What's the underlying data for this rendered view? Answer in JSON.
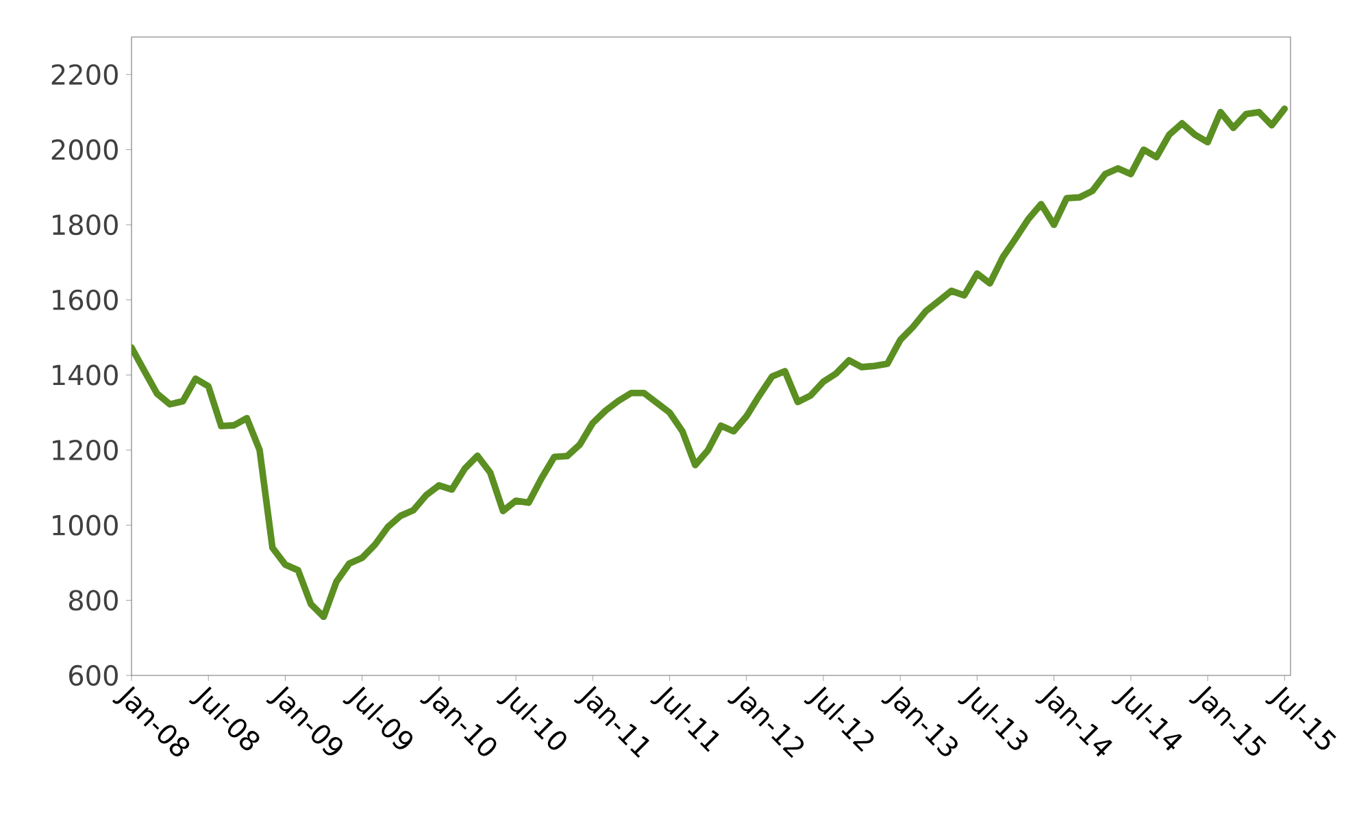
{
  "chart_data": {
    "type": "line",
    "x": [
      "2008-01",
      "2008-02",
      "2008-03",
      "2008-04",
      "2008-05",
      "2008-06",
      "2008-07",
      "2008-08",
      "2008-09",
      "2008-10",
      "2008-11",
      "2008-12",
      "2009-01",
      "2009-02",
      "2009-03",
      "2009-04",
      "2009-05",
      "2009-06",
      "2009-07",
      "2009-08",
      "2009-09",
      "2009-10",
      "2009-11",
      "2009-12",
      "2010-01",
      "2010-02",
      "2010-03",
      "2010-04",
      "2010-05",
      "2010-06",
      "2010-07",
      "2010-08",
      "2010-09",
      "2010-10",
      "2010-11",
      "2010-12",
      "2011-01",
      "2011-02",
      "2011-03",
      "2011-04",
      "2011-05",
      "2011-06",
      "2011-07",
      "2011-08",
      "2011-09",
      "2011-10",
      "2011-11",
      "2011-12",
      "2012-01",
      "2012-02",
      "2012-03",
      "2012-04",
      "2012-05",
      "2012-06",
      "2012-07",
      "2012-08",
      "2012-09",
      "2012-10",
      "2012-11",
      "2012-12",
      "2013-01",
      "2013-02",
      "2013-03",
      "2013-04",
      "2013-05",
      "2013-06",
      "2013-07",
      "2013-08",
      "2013-09",
      "2013-10",
      "2013-11",
      "2013-12",
      "2014-01",
      "2014-02",
      "2014-03",
      "2014-04",
      "2014-05",
      "2014-06",
      "2014-07",
      "2014-08",
      "2014-09",
      "2014-10",
      "2014-11",
      "2014-12",
      "2015-01",
      "2015-02",
      "2015-03",
      "2015-04",
      "2015-05",
      "2015-06",
      "2015-07"
    ],
    "series": [
      {
        "color": "#5b8f22",
        "values": [
          1473,
          1411,
          1350,
          1322,
          1330,
          1390,
          1370,
          1264,
          1266,
          1285,
          1200,
          940,
          895,
          880,
          790,
          756,
          850,
          898,
          913,
          948,
          995,
          1025,
          1040,
          1080,
          1106,
          1095,
          1150,
          1185,
          1140,
          1038,
          1065,
          1060,
          1125,
          1182,
          1184,
          1215,
          1272,
          1305,
          1331,
          1352,
          1352,
          1326,
          1300,
          1250,
          1160,
          1200,
          1265,
          1250,
          1290,
          1345,
          1396,
          1410,
          1328,
          1345,
          1382,
          1404,
          1439,
          1421,
          1424,
          1430,
          1493,
          1528,
          1570,
          1597,
          1624,
          1612,
          1670,
          1644,
          1713,
          1763,
          1815,
          1855,
          1800,
          1871,
          1873,
          1890,
          1935,
          1950,
          1935,
          2000,
          1980,
          2040,
          2070,
          2040,
          2020,
          2100,
          2058,
          2095,
          2100,
          2065,
          2109
        ]
      }
    ],
    "xlim": [
      "2008-01",
      "2015-07-15"
    ],
    "ylim": [
      600,
      2300
    ],
    "xticks": [
      {
        "value": "2008-01",
        "label": "Jan-08"
      },
      {
        "value": "2008-07",
        "label": "Jul-08"
      },
      {
        "value": "2009-01",
        "label": "Jan-09"
      },
      {
        "value": "2009-07",
        "label": "Jul-09"
      },
      {
        "value": "2010-01",
        "label": "Jan-10"
      },
      {
        "value": "2010-07",
        "label": "Jul-10"
      },
      {
        "value": "2011-01",
        "label": "Jan-11"
      },
      {
        "value": "2011-07",
        "label": "Jul-11"
      },
      {
        "value": "2012-01",
        "label": "Jan-12"
      },
      {
        "value": "2012-07",
        "label": "Jul-12"
      },
      {
        "value": "2013-01",
        "label": "Jan-13"
      },
      {
        "value": "2013-07",
        "label": "Jul-13"
      },
      {
        "value": "2014-01",
        "label": "Jan-14"
      },
      {
        "value": "2014-07",
        "label": "Jul-14"
      },
      {
        "value": "2015-01",
        "label": "Jan-15"
      },
      {
        "value": "2015-07",
        "label": "Jul-15"
      }
    ],
    "yticks": [
      600,
      800,
      1000,
      1200,
      1400,
      1600,
      1800,
      2000,
      2200
    ]
  }
}
